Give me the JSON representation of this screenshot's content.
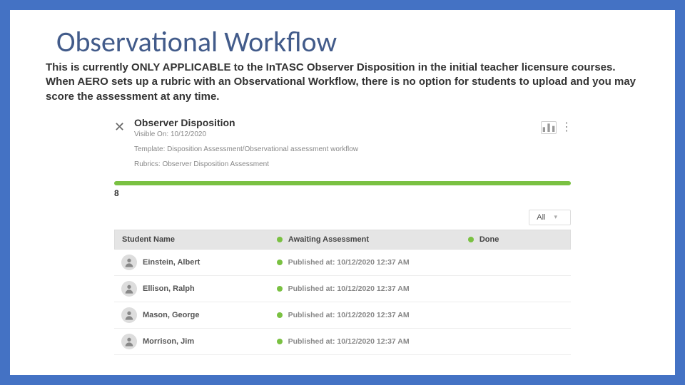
{
  "slide": {
    "title": "Observational Workflow",
    "description": "This is currently ONLY APPLICABLE to the InTASC Observer Disposition in the initial teacher licensure courses. When AERO sets up a rubric with an Observational Workflow, there is no option for students to upload and you may score the assessment at any time.",
    "border_color": "#4472c4",
    "title_color": "#425b8a"
  },
  "screenshot": {
    "panel_title": "Observer Disposition",
    "visible_on": "Visible On: 10/12/2020",
    "template_line": "Template: Disposition Assessment/Observational assessment workflow",
    "rubrics_line": "Rubrics: Observer Disposition Assessment",
    "progress": {
      "value": 8,
      "label": "8",
      "bar_color": "#7ac142"
    },
    "filter": {
      "selected": "All"
    },
    "columns": {
      "name": "Student Name",
      "status": "Awaiting Assessment",
      "done": "Done"
    },
    "rows": [
      {
        "name": "Einstein, Albert",
        "status": "Published at: 10/12/2020 12:37 AM"
      },
      {
        "name": "Ellison, Ralph",
        "status": "Published at: 10/12/2020 12:37 AM"
      },
      {
        "name": "Mason, George",
        "status": "Published at: 10/12/2020 12:37 AM"
      },
      {
        "name": "Morrison, Jim",
        "status": "Published at: 10/12/2020 12:37 AM"
      }
    ],
    "dot_color": "#7ac142",
    "header_bg": "#e5e5e5"
  }
}
